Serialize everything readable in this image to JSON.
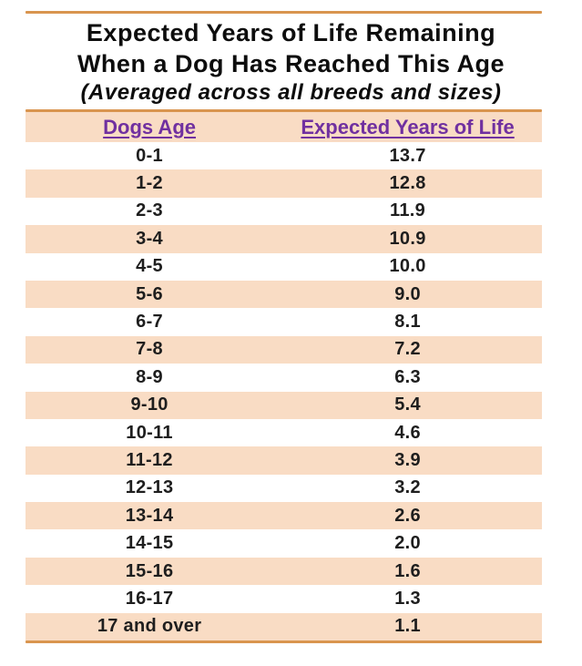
{
  "title": {
    "line1": "Expected Years of Life Remaining",
    "line2": "When a Dog Has Reached This Age",
    "subtitle": "(Averaged across all breeds and sizes)"
  },
  "table": {
    "columns": [
      "Dogs Age",
      "Expected Years of Life"
    ],
    "rows": [
      [
        "0-1",
        "13.7"
      ],
      [
        "1-2",
        "12.8"
      ],
      [
        "2-3",
        "11.9"
      ],
      [
        "3-4",
        "10.9"
      ],
      [
        "4-5",
        "10.0"
      ],
      [
        "5-6",
        "9.0"
      ],
      [
        "6-7",
        "8.1"
      ],
      [
        "7-8",
        "7.2"
      ],
      [
        "8-9",
        "6.3"
      ],
      [
        "9-10",
        "5.4"
      ],
      [
        "10-11",
        "4.6"
      ],
      [
        "11-12",
        "3.9"
      ],
      [
        "12-13",
        "3.2"
      ],
      [
        "13-14",
        "2.6"
      ],
      [
        "14-15",
        "2.0"
      ],
      [
        "15-16",
        "1.6"
      ],
      [
        "16-17",
        "1.3"
      ],
      [
        "17 and over",
        "1.1"
      ]
    ]
  },
  "colors": {
    "stripe": "#F9DCC4",
    "rule": "#D9954F",
    "header_text": "#7030A0",
    "body_text": "#1E1E1E"
  },
  "chart_data": {
    "type": "table",
    "title": "Expected Years of Life Remaining When a Dog Has Reached This Age",
    "subtitle": "(Averaged across all breeds and sizes)",
    "columns": [
      "Dogs Age",
      "Expected Years of Life"
    ],
    "categories": [
      "0-1",
      "1-2",
      "2-3",
      "3-4",
      "4-5",
      "5-6",
      "6-7",
      "7-8",
      "8-9",
      "9-10",
      "10-11",
      "11-12",
      "12-13",
      "13-14",
      "14-15",
      "15-16",
      "16-17",
      "17 and over"
    ],
    "values": [
      13.7,
      12.8,
      11.9,
      10.9,
      10.0,
      9.0,
      8.1,
      7.2,
      6.3,
      5.4,
      4.6,
      3.9,
      3.2,
      2.6,
      2.0,
      1.6,
      1.3,
      1.1
    ],
    "layout": "alternating row stripes, centered columns, no gridlines"
  }
}
